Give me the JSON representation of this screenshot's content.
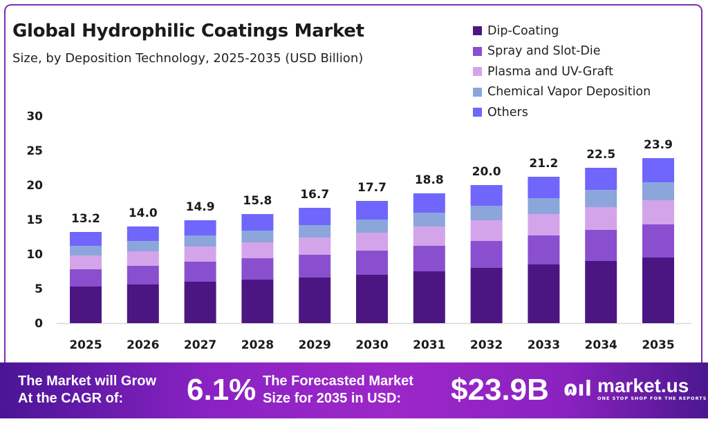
{
  "chart_data": {
    "type": "bar",
    "stacked": true,
    "title": "Global Hydrophilic Coatings Market",
    "subtitle": "Size, by Deposition Technology, 2025-2035 (USD Billion)",
    "xlabel": "",
    "ylabel": "",
    "ylim": [
      0,
      30
    ],
    "yticks": [
      0,
      5,
      10,
      15,
      20,
      25,
      30
    ],
    "grid": false,
    "legend_position": "top-right",
    "categories": [
      "2025",
      "2026",
      "2027",
      "2028",
      "2029",
      "2030",
      "2031",
      "2032",
      "2033",
      "2034",
      "2035"
    ],
    "totals": [
      "13.2",
      "14.0",
      "14.9",
      "15.8",
      "16.7",
      "17.7",
      "18.8",
      "20.0",
      "21.2",
      "22.5",
      "23.9"
    ],
    "series": [
      {
        "name": "Dip-Coating",
        "color": "#4b1682",
        "values": [
          5.3,
          5.6,
          6.0,
          6.3,
          6.6,
          7.0,
          7.5,
          8.0,
          8.5,
          9.0,
          9.5
        ]
      },
      {
        "name": "Spray and Slot-Die",
        "color": "#8a4fce",
        "values": [
          2.5,
          2.7,
          2.9,
          3.1,
          3.3,
          3.5,
          3.7,
          3.9,
          4.2,
          4.5,
          4.8
        ]
      },
      {
        "name": "Plasma and UV-Graft",
        "color": "#d4a4ea",
        "values": [
          2.0,
          2.1,
          2.2,
          2.3,
          2.5,
          2.6,
          2.8,
          3.0,
          3.1,
          3.3,
          3.5
        ]
      },
      {
        "name": "Chemical Vapor Deposition",
        "color": "#8ca6db",
        "values": [
          1.4,
          1.5,
          1.6,
          1.7,
          1.8,
          1.9,
          2.0,
          2.1,
          2.3,
          2.5,
          2.6
        ]
      },
      {
        "name": "Others",
        "color": "#7066fb",
        "values": [
          2.0,
          2.1,
          2.2,
          2.4,
          2.5,
          2.7,
          2.8,
          3.0,
          3.1,
          3.2,
          3.5
        ]
      }
    ]
  },
  "footer": {
    "cagr_label_line1": "The Market will Grow",
    "cagr_label_line2": "At the CAGR of:",
    "cagr_value": "6.1%",
    "forecast_label_line1": "The Forecasted Market",
    "forecast_label_line2": "Size for 2035 in USD:",
    "forecast_value": "$23.9B",
    "logo_mark": "ɷıl",
    "logo_name": "market.us",
    "logo_tagline": "ONE STOP SHOP FOR THE REPORTS"
  }
}
